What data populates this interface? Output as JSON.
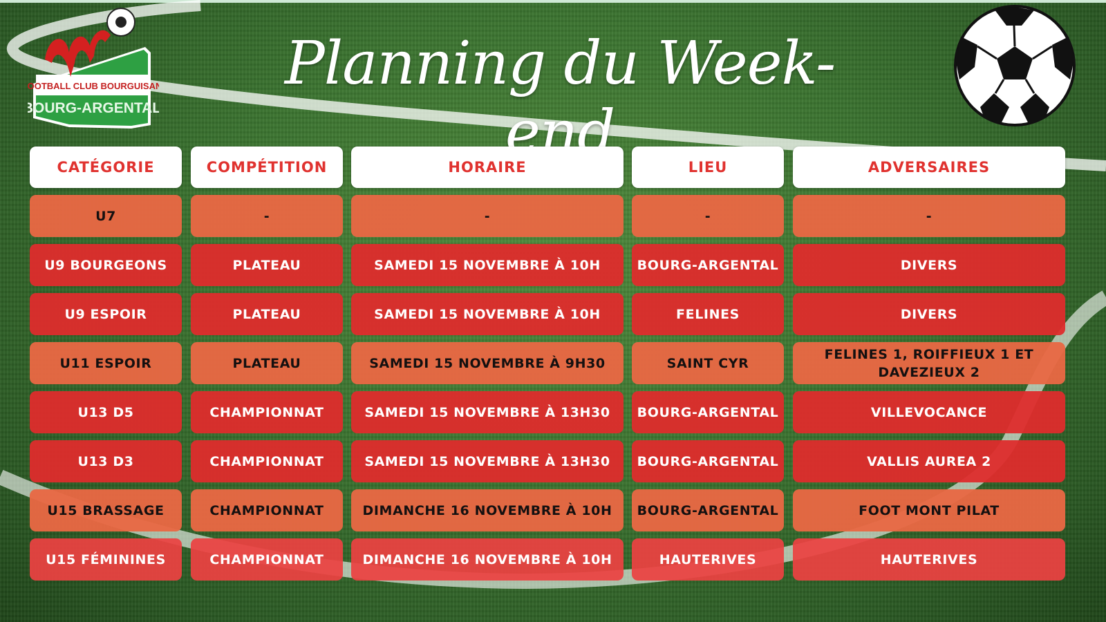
{
  "header": {
    "title": "Planning du Week-end",
    "logo": {
      "line1": "Football Club Bourguisan",
      "line2": "BOURG-ARGENTAL"
    }
  },
  "colors": {
    "header_text": "#e0322f",
    "row_orange": "#e86844",
    "row_red": "#de2c2c",
    "logo_green": "#2ea043"
  },
  "table": {
    "columns": [
      "CATÉGORIE",
      "COMPÉTITION",
      "HORAIRE",
      "LIEU",
      "ADVERSAIRES"
    ],
    "rows": [
      {
        "style": "orange",
        "cells": [
          "U7",
          "-",
          "-",
          "-",
          "-"
        ]
      },
      {
        "style": "red",
        "cells": [
          "U9 BOURGEONS",
          "PLATEAU",
          "SAMEDI 15 NOVEMBRE À 10H",
          "BOURG-ARGENTAL",
          "DIVERS"
        ]
      },
      {
        "style": "red",
        "cells": [
          "U9 ESPOIR",
          "PLATEAU",
          "SAMEDI 15 NOVEMBRE À 10H",
          "FELINES",
          "DIVERS"
        ]
      },
      {
        "style": "orange",
        "cells": [
          "U11 ESPOIR",
          "PLATEAU",
          "SAMEDI 15 NOVEMBRE À 9H30",
          "SAINT CYR",
          "FELINES 1, ROIFFIEUX 1 ET DAVEZIEUX 2"
        ]
      },
      {
        "style": "red",
        "cells": [
          "U13 D5",
          "CHAMPIONNAT",
          "SAMEDI 15 NOVEMBRE À 13H30",
          "BOURG-ARGENTAL",
          "VILLEVOCANCE"
        ]
      },
      {
        "style": "red",
        "cells": [
          "U13 D3",
          "CHAMPIONNAT",
          "SAMEDI 15 NOVEMBRE À 13H30",
          "BOURG-ARGENTAL",
          "VALLIS AUREA 2"
        ]
      },
      {
        "style": "orange",
        "cells": [
          "U15 BRASSAGE",
          "CHAMPIONNAT",
          "DIMANCHE 16 NOVEMBRE À 10H",
          "BOURG-ARGENTAL",
          "FOOT MONT PILAT"
        ]
      },
      {
        "style": "pink",
        "cells": [
          "U15 FÉMININES",
          "CHAMPIONNAT",
          "DIMANCHE 16 NOVEMBRE À 10H",
          "HAUTERIVES",
          "HAUTERIVES"
        ]
      }
    ]
  }
}
